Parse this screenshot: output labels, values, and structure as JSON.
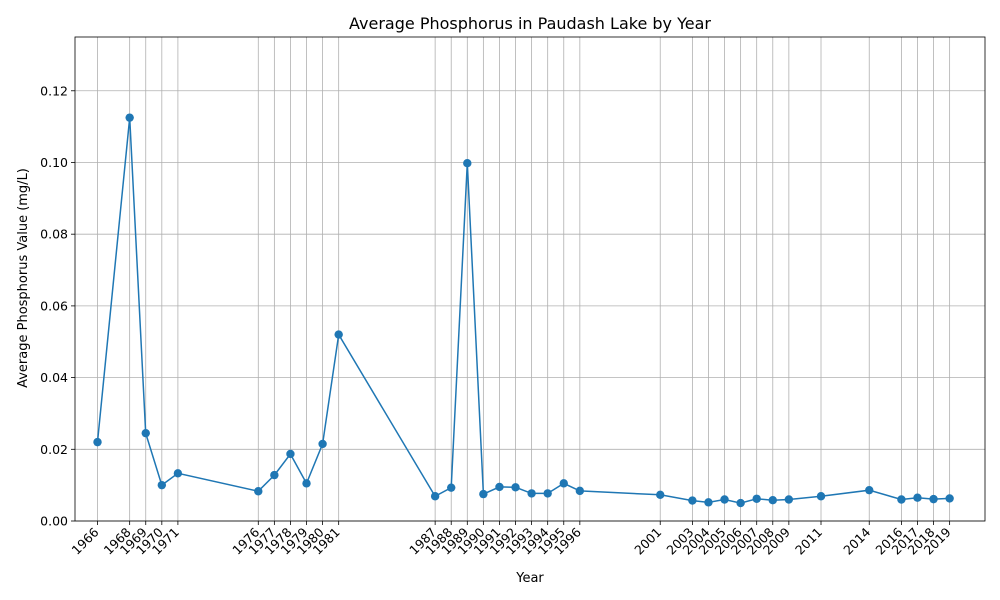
{
  "chart_data": {
    "type": "line",
    "title": "Average Phosphorus in Paudash Lake by Year",
    "xlabel": "Year",
    "ylabel": "Average Phosphorus Value (mg/L)",
    "ylim": [
      0,
      0.135
    ],
    "yticks": [
      "0.00",
      "0.02",
      "0.04",
      "0.06",
      "0.08",
      "0.10",
      "0.12"
    ],
    "grid": true,
    "marker": "circle",
    "color": "#1f77b4",
    "categories": [
      "1966",
      "1968",
      "1969",
      "1970",
      "1971",
      "1976",
      "1977",
      "1978",
      "1979",
      "1980",
      "1981",
      "1987",
      "1988",
      "1989",
      "1990",
      "1991",
      "1992",
      "1993",
      "1994",
      "1995",
      "1996",
      "2001",
      "2003",
      "2004",
      "2005",
      "2006",
      "2007",
      "2008",
      "2009",
      "2011",
      "2014",
      "2016",
      "2017",
      "2018",
      "2019"
    ],
    "series": [
      {
        "values": [
          0.022,
          0.1125,
          0.0245,
          0.01,
          0.0133,
          0.0083,
          0.0128,
          0.0187,
          0.0105,
          0.0215,
          0.052,
          0.0069,
          0.0093,
          0.0998,
          0.0075,
          0.0095,
          0.0094,
          0.0077,
          0.0077,
          0.0105,
          0.0084,
          0.0073,
          0.0057,
          0.0052,
          0.006,
          0.005,
          0.0062,
          0.0058,
          0.006,
          0.0069,
          0.0086,
          0.006,
          0.0065,
          0.0061,
          0.0063
        ]
      }
    ]
  }
}
